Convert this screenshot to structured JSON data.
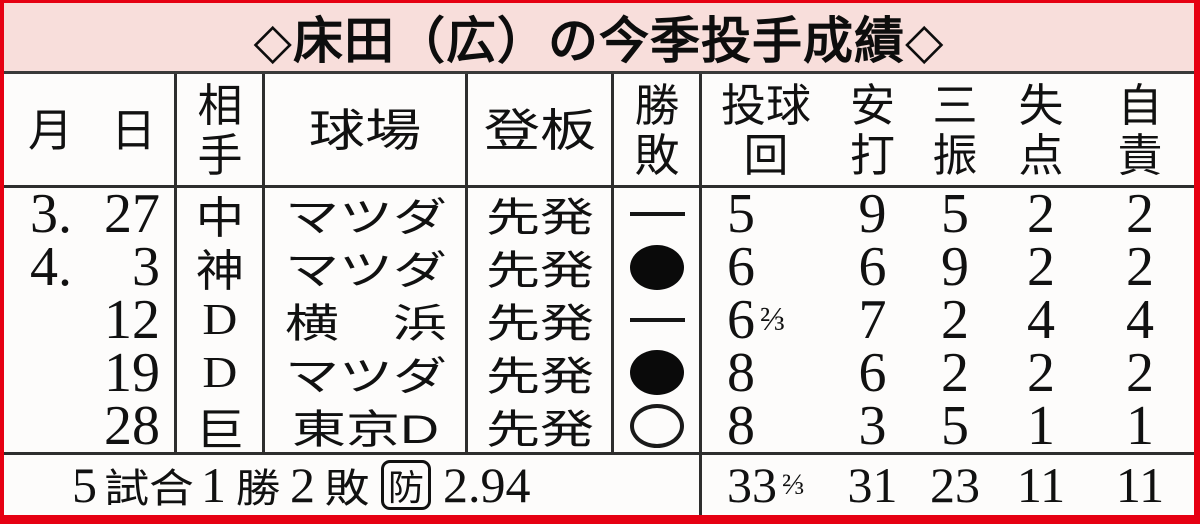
{
  "title": "◇床田（広）の今季投手成績◇",
  "colors": {
    "border_red": "#e60012",
    "title_pink": "#f8dedb",
    "grid_dark": "#2e2e2e",
    "mark_black": "#0a0a0a"
  },
  "header": {
    "date_month": "月",
    "date_day": "日",
    "opponent": [
      "相",
      "手"
    ],
    "stadium": "球場",
    "appearance": "登板",
    "result": [
      "勝",
      "敗"
    ],
    "innings": [
      "投球",
      "回"
    ],
    "hits": [
      "安",
      "打"
    ],
    "strikeouts": [
      "三",
      "振"
    ],
    "runs": [
      "失",
      "点"
    ],
    "earned_runs": [
      "自",
      "責"
    ]
  },
  "result_marks": {
    "dash": "—",
    "loss": "●",
    "win": "○"
  },
  "rows": [
    {
      "month": "3.",
      "day": "27",
      "opp": "中",
      "stadium": "マツダ",
      "role": "先発",
      "result": "dash",
      "ip_whole": "5",
      "ip_frac": "",
      "hits": "9",
      "so": "5",
      "runs": "2",
      "er": "2"
    },
    {
      "month": "4.",
      "day": "3",
      "opp": "神",
      "stadium": "マツダ",
      "role": "先発",
      "result": "loss",
      "ip_whole": "6",
      "ip_frac": "",
      "hits": "6",
      "so": "9",
      "runs": "2",
      "er": "2"
    },
    {
      "month": "",
      "day": "12",
      "opp": "D",
      "stadium": "横　浜",
      "role": "先発",
      "result": "dash",
      "ip_whole": "6",
      "ip_frac": "⅔",
      "hits": "7",
      "so": "2",
      "runs": "4",
      "er": "4"
    },
    {
      "month": "",
      "day": "19",
      "opp": "D",
      "stadium": "マツダ",
      "role": "先発",
      "result": "loss",
      "ip_whole": "8",
      "ip_frac": "",
      "hits": "6",
      "so": "2",
      "runs": "2",
      "er": "2"
    },
    {
      "month": "",
      "day": "28",
      "opp": "巨",
      "stadium": "東京D",
      "role": "先発",
      "result": "win",
      "ip_whole": "8",
      "ip_frac": "",
      "hits": "3",
      "so": "5",
      "runs": "1",
      "er": "1"
    }
  ],
  "summary": {
    "games_num": "5",
    "games_label": "試合",
    "wins_num": "1",
    "wins_label": "勝",
    "losses_num": "2",
    "losses_label": "敗",
    "era_label": "防",
    "era": "2.94",
    "ip_whole": "33",
    "ip_frac": "⅔",
    "hits": "31",
    "so": "23",
    "runs": "11",
    "er": "11"
  },
  "chart_data": {
    "type": "table",
    "title": "◇床田（広）の今季投手成績◇",
    "columns": [
      "月日",
      "相手",
      "球場",
      "登板",
      "勝敗",
      "投球回",
      "安打",
      "三振",
      "失点",
      "自責"
    ],
    "rows": [
      [
        "3.27",
        "中",
        "マツダ",
        "先発",
        "—",
        "5",
        "9",
        "5",
        "2",
        "2"
      ],
      [
        "4.3",
        "神",
        "マツダ",
        "先発",
        "●",
        "6",
        "6",
        "9",
        "2",
        "2"
      ],
      [
        "12",
        "D",
        "横浜",
        "先発",
        "—",
        "6⅔",
        "7",
        "2",
        "4",
        "4"
      ],
      [
        "19",
        "D",
        "マツダ",
        "先発",
        "●",
        "8",
        "6",
        "2",
        "2",
        "2"
      ],
      [
        "28",
        "巨",
        "東京D",
        "先発",
        "○",
        "8",
        "3",
        "5",
        "1",
        "1"
      ]
    ],
    "summary_row": [
      "5試合1勝2敗 防2.94",
      "33⅔",
      "31",
      "23",
      "11",
      "11"
    ]
  }
}
